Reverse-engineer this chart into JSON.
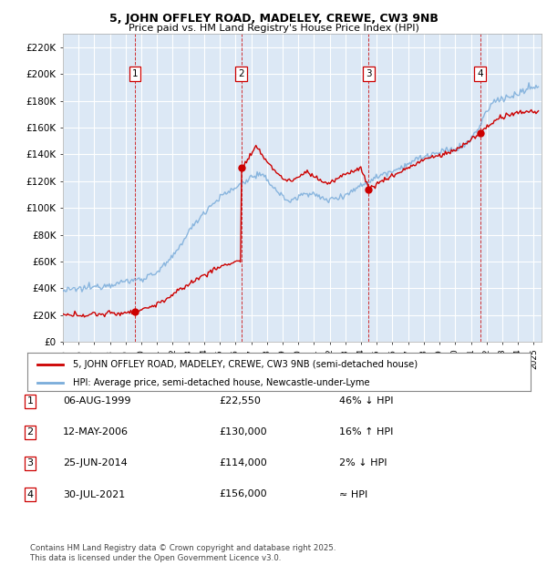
{
  "title1": "5, JOHN OFFLEY ROAD, MADELEY, CREWE, CW3 9NB",
  "title2": "Price paid vs. HM Land Registry's House Price Index (HPI)",
  "ylim": [
    0,
    230000
  ],
  "yticks": [
    0,
    20000,
    40000,
    60000,
    80000,
    100000,
    120000,
    140000,
    160000,
    180000,
    200000,
    220000
  ],
  "ytick_labels": [
    "£0",
    "£20K",
    "£40K",
    "£60K",
    "£80K",
    "£100K",
    "£120K",
    "£140K",
    "£160K",
    "£180K",
    "£200K",
    "£220K"
  ],
  "bg_color": "#dce8f5",
  "grid_color": "#ffffff",
  "sale_color": "#cc0000",
  "hpi_color": "#7aacda",
  "transactions": [
    {
      "year": 1999.59,
      "price": 22550,
      "label": "1"
    },
    {
      "year": 2006.36,
      "price": 130000,
      "label": "2"
    },
    {
      "year": 2014.48,
      "price": 114000,
      "label": "3"
    },
    {
      "year": 2021.58,
      "price": 156000,
      "label": "4"
    }
  ],
  "legend_sale_label": "5, JOHN OFFLEY ROAD, MADELEY, CREWE, CW3 9NB (semi-detached house)",
  "legend_hpi_label": "HPI: Average price, semi-detached house, Newcastle-under-Lyme",
  "table_rows": [
    {
      "num": "1",
      "date": "06-AUG-1999",
      "price": "£22,550",
      "hpi": "46% ↓ HPI"
    },
    {
      "num": "2",
      "date": "12-MAY-2006",
      "price": "£130,000",
      "hpi": "16% ↑ HPI"
    },
    {
      "num": "3",
      "date": "25-JUN-2014",
      "price": "£114,000",
      "hpi": "2% ↓ HPI"
    },
    {
      "num": "4",
      "date": "30-JUL-2021",
      "price": "£156,000",
      "hpi": "≈ HPI"
    }
  ],
  "footer": "Contains HM Land Registry data © Crown copyright and database right 2025.\nThis data is licensed under the Open Government Licence v3.0."
}
